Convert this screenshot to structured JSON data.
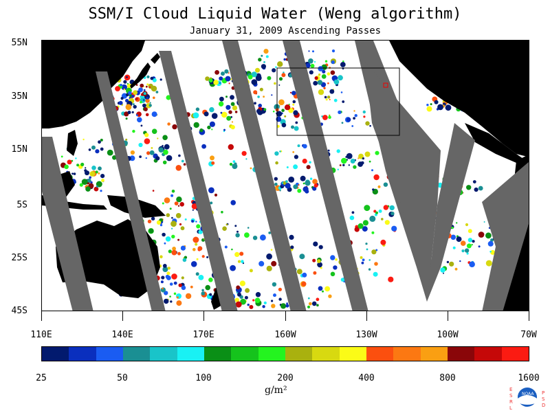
{
  "title": "SSM/I Cloud Liquid Water (Weng algorithm)",
  "subtitle": "January 31, 2009  Ascending Passes",
  "lat_labels": [
    "55N",
    "35N",
    "15N",
    "5S",
    "25S",
    "45S"
  ],
  "lon_labels": [
    "110E",
    "140E",
    "170E",
    "160W",
    "130W",
    "100W",
    "70W"
  ],
  "colorbar": {
    "labels": [
      "25",
      "50",
      "100",
      "200",
      "400",
      "800",
      "1600"
    ],
    "units": "g/m²",
    "colors": [
      "#021a6e",
      "#0a2fbe",
      "#1a5cf2",
      "#1a8f93",
      "#19c4c9",
      "#19f1f4",
      "#0a8f16",
      "#15c31c",
      "#24f41f",
      "#a9b10f",
      "#d8d910",
      "#fbfb17",
      "#fb4f0f",
      "#fc7812",
      "#fa9f12",
      "#8a0609",
      "#c50808",
      "#fb1b12"
    ]
  },
  "map": {
    "land_color": "#000000",
    "swath_gap_color": "#666666",
    "ocean_color": "#ffffff",
    "analysis_box": true
  },
  "logo": {
    "left_letters": "ESRL",
    "right_letters": "PSD",
    "emblem_text": "NOAA"
  }
}
